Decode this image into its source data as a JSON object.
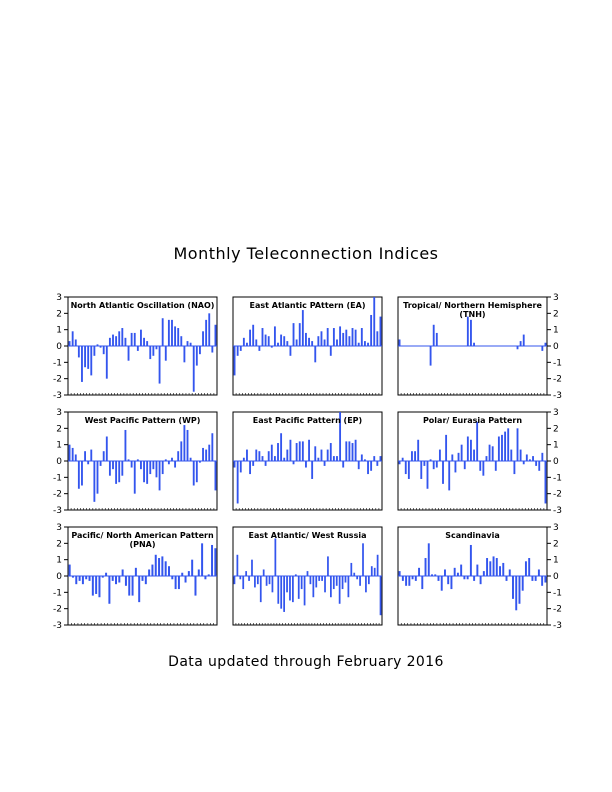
{
  "page": {
    "title": "Monthly Teleconnection Indices",
    "footer": "Data updated through February 2016"
  },
  "colors": {
    "bar": "#3355ee",
    "zero_line": "#3355ee",
    "frame": "#000000"
  },
  "chart_data": [
    {
      "type": "bar",
      "title": "North Atlantic Oscillation (NAO)",
      "title_lines": [
        "North Atlantic Oscillation (NAO)"
      ],
      "ylim": [
        -3,
        3
      ],
      "yticks": [
        3,
        2,
        1,
        0,
        -1,
        -2,
        -3
      ],
      "values": [
        0.3,
        0.9,
        0.4,
        -0.7,
        -2.2,
        -1.3,
        -1.4,
        -1.8,
        -0.6,
        0.1,
        -0.1,
        -0.5,
        -2.0,
        0.5,
        0.7,
        0.6,
        0.9,
        1.1,
        0.5,
        -0.9,
        0.8,
        0.8,
        -0.3,
        1.0,
        0.5,
        0.3,
        -0.8,
        -0.6,
        -0.2,
        -2.3,
        1.7,
        -0.9,
        1.6,
        1.6,
        1.2,
        1.1,
        0.6,
        -1.0,
        0.3,
        0.2,
        -2.8,
        -1.2,
        -0.5,
        0.9,
        1.6,
        2.0,
        -0.4,
        1.3
      ]
    },
    {
      "type": "bar",
      "title": "East Atlantic PAttern (EA)",
      "title_lines": [
        "East Atlantic PAttern (EA)"
      ],
      "ylim": [
        -3,
        3
      ],
      "yticks": [
        3,
        2,
        1,
        0,
        -1,
        -2,
        -3
      ],
      "values": [
        -1.8,
        -0.6,
        -0.3,
        0.5,
        0.2,
        1.0,
        1.3,
        0.4,
        -0.3,
        1.1,
        0.7,
        0.6,
        -0.1,
        1.2,
        0.2,
        0.7,
        0.6,
        0.3,
        -0.6,
        1.4,
        0.4,
        1.4,
        2.2,
        0.8,
        0.5,
        0.3,
        -1.0,
        0.6,
        0.9,
        0.4,
        1.1,
        -0.6,
        1.1,
        0.4,
        1.2,
        0.8,
        1.0,
        0.6,
        1.1,
        1.0,
        0.2,
        1.1,
        0.3,
        0.2,
        1.9,
        3.0,
        0.9,
        1.8
      ]
    },
    {
      "type": "bar",
      "title": "Tropical/ Northern Hemisphere (TNH)",
      "title_lines": [
        "Tropical/ Northern Hemisphere",
        "(TNH)"
      ],
      "ylim": [
        -3,
        3
      ],
      "yticks": [
        3,
        2,
        1,
        0,
        -1,
        -2,
        -3
      ],
      "y_axis_side": "right",
      "values": [
        0.4,
        0,
        0,
        0,
        0,
        0,
        0,
        0,
        0,
        0,
        -1.2,
        1.3,
        0.8,
        0,
        0,
        0,
        0,
        0,
        0,
        0,
        0,
        0,
        1.8,
        1.6,
        0.2,
        0,
        0,
        0,
        0,
        0,
        0,
        0,
        0,
        0,
        0,
        0,
        0,
        0,
        -0.2,
        0.3,
        0.7,
        0,
        0,
        0,
        0,
        0,
        -0.3,
        0.2
      ]
    },
    {
      "type": "bar",
      "title": "West Pacific Pattern (WP)",
      "title_lines": [
        "West Pacific Pattern (WP)"
      ],
      "ylim": [
        -3,
        3
      ],
      "yticks": [
        3,
        2,
        1,
        0,
        -1,
        -2,
        -3
      ],
      "values": [
        1.0,
        0.8,
        0.4,
        -1.7,
        -1.5,
        0.6,
        -0.2,
        0.7,
        -2.5,
        -2.0,
        -0.3,
        0.6,
        1.5,
        -0.9,
        -0.5,
        -1.4,
        -1.3,
        -0.9,
        1.9,
        0.1,
        -0.4,
        -2.0,
        0.1,
        -0.5,
        -1.3,
        -1.4,
        -0.8,
        -0.5,
        -1.0,
        -1.8,
        -0.8,
        0.1,
        -0.2,
        0.2,
        -0.4,
        0.6,
        1.2,
        2.2,
        1.9,
        0.2,
        -1.5,
        -1.3,
        -0.1,
        0.8,
        0.7,
        1.0,
        1.7,
        -1.8
      ]
    },
    {
      "type": "bar",
      "title": "East Pacific Pattern (EP)",
      "title_lines": [
        "East Pacific Pattern (EP)"
      ],
      "ylim": [
        -3,
        3
      ],
      "yticks": [
        3,
        2,
        1,
        0,
        -1,
        -2,
        -3
      ],
      "values": [
        -0.4,
        -2.6,
        -0.7,
        0.2,
        0.7,
        -0.8,
        -0.3,
        0.7,
        0.6,
        0.3,
        -0.3,
        0.6,
        1.0,
        0.3,
        1.1,
        1.7,
        0.2,
        0.7,
        1.3,
        -0.2,
        1.1,
        1.2,
        1.2,
        -0.4,
        1.3,
        -1.1,
        0.9,
        0.2,
        0.7,
        -0.3,
        0.7,
        1.1,
        0.3,
        0.3,
        3.0,
        -0.4,
        1.2,
        1.2,
        1.1,
        1.3,
        -0.5,
        0.4,
        0.1,
        -0.8,
        -0.6,
        0.3,
        -0.3,
        0.3
      ]
    },
    {
      "type": "bar",
      "title": "Polar/ Eurasia Pattern",
      "title_lines": [
        "Polar/ Eurasia Pattern"
      ],
      "ylim": [
        -3,
        3
      ],
      "yticks": [
        3,
        2,
        1,
        0,
        -1,
        -2,
        -3
      ],
      "y_axis_side": "right",
      "values": [
        -0.2,
        0.2,
        -0.8,
        -1.1,
        0.6,
        0.6,
        1.3,
        -1.1,
        -0.3,
        -1.7,
        0.1,
        -0.5,
        -0.4,
        0.7,
        -1.4,
        1.6,
        -1.8,
        0.4,
        -0.7,
        0.5,
        1.0,
        -0.5,
        1.5,
        1.3,
        0.7,
        2.4,
        -0.6,
        -0.9,
        0.3,
        1.0,
        0.9,
        -0.6,
        1.5,
        1.6,
        1.8,
        2.0,
        0.7,
        -0.8,
        2.0,
        0.7,
        -0.2,
        0.4,
        0.1,
        0.3,
        -0.3,
        -0.6,
        0.5,
        -2.6
      ]
    },
    {
      "type": "bar",
      "title": "Pacific/ North American Pattern (PNA)",
      "title_lines": [
        "Pacific/ North American Pattern",
        "(PNA)"
      ],
      "ylim": [
        -3,
        3
      ],
      "yticks": [
        3,
        2,
        1,
        0,
        -1,
        -2,
        -3
      ],
      "values": [
        0.7,
        -0.1,
        -0.5,
        -0.3,
        -0.5,
        -0.2,
        -0.3,
        -1.2,
        -1.1,
        -1.3,
        -0.1,
        0.2,
        -1.7,
        -0.3,
        -0.5,
        -0.4,
        0.4,
        -0.6,
        -1.2,
        -1.2,
        0.5,
        -1.6,
        -0.3,
        -0.5,
        0.4,
        0.7,
        1.3,
        1.1,
        1.2,
        0.9,
        0.6,
        -0.2,
        -0.8,
        -0.8,
        0.2,
        -0.4,
        0.3,
        1.0,
        -1.2,
        0.4,
        2.0,
        -0.2,
        0.1,
        1.9,
        1.7
      ]
    },
    {
      "type": "bar",
      "title": "East Atlantic/ West Russia",
      "title_lines": [
        "East Atlantic/ West Russia"
      ],
      "ylim": [
        -3,
        3
      ],
      "yticks": [
        3,
        2,
        1,
        0,
        -1,
        -2,
        -3
      ],
      "values": [
        -0.5,
        1.3,
        -0.2,
        -0.8,
        0.3,
        -0.3,
        1.0,
        -0.7,
        -0.5,
        -1.6,
        0.4,
        -0.6,
        -0.5,
        -1.0,
        2.3,
        -1.7,
        -2.0,
        -2.2,
        -1.0,
        -1.5,
        -1.6,
        0.1,
        -1.4,
        -0.8,
        -1.8,
        0.3,
        -0.5,
        -1.3,
        -0.7,
        -0.3,
        -0.3,
        -1.0,
        1.2,
        -1.3,
        -0.8,
        -0.6,
        -1.7,
        -0.8,
        -0.4,
        -1.3,
        0.8,
        0.2,
        -0.2,
        -0.6,
        2.0,
        -1.0,
        -0.5,
        0.6,
        0.5,
        1.3,
        -2.4
      ]
    },
    {
      "type": "bar",
      "title": "Scandinavia",
      "title_lines": [
        "Scandinavia"
      ],
      "ylim": [
        -3,
        3
      ],
      "yticks": [
        3,
        2,
        1,
        0,
        -1,
        -2,
        -3
      ],
      "y_axis_side": "right",
      "values": [
        0.3,
        -0.3,
        -0.6,
        -0.6,
        -0.2,
        -0.3,
        0.5,
        -0.8,
        1.1,
        2.0,
        0.1,
        0.1,
        -0.3,
        -0.9,
        0.4,
        -0.5,
        -0.8,
        0.5,
        0.2,
        0.7,
        -0.2,
        -0.2,
        1.9,
        -0.3,
        0.7,
        -0.5,
        0.3,
        1.1,
        0.9,
        1.2,
        1.1,
        0.6,
        0.8,
        -0.3,
        0.4,
        -1.4,
        -2.1,
        -1.7,
        -0.9,
        0.9,
        1.1,
        -0.3,
        -0.3,
        0.4,
        -0.6,
        -0.4
      ]
    }
  ]
}
